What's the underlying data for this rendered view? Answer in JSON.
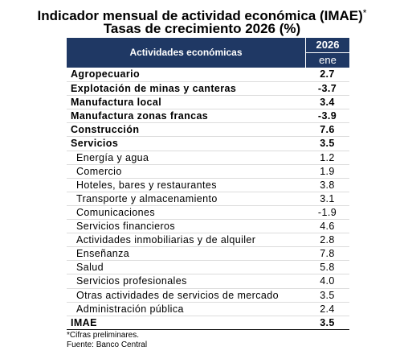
{
  "title": {
    "line1": "Indicador mensual de actividad económica (IMAE)",
    "line1_mark": "*",
    "line2": "Tasas de crecimiento 2026 (%)"
  },
  "table": {
    "header": {
      "label": "Actividades económicas",
      "year": "2026",
      "month": "ene"
    },
    "rows": [
      {
        "label": "Agropecuario",
        "value": "2.7",
        "level": "main"
      },
      {
        "label": "Explotación de minas y canteras",
        "value": "-3.7",
        "level": "main"
      },
      {
        "label": "Manufactura local",
        "value": "3.4",
        "level": "main"
      },
      {
        "label": "Manufactura zonas francas",
        "value": "-3.9",
        "level": "main"
      },
      {
        "label": "Construcción",
        "value": "7.6",
        "level": "main"
      },
      {
        "label": "Servicios",
        "value": "3.5",
        "level": "main"
      },
      {
        "label": "Energía y agua",
        "value": "1.2",
        "level": "sub"
      },
      {
        "label": "Comercio",
        "value": "1.9",
        "level": "sub"
      },
      {
        "label": "Hoteles, bares y restaurantes",
        "value": "3.8",
        "level": "sub"
      },
      {
        "label": "Transporte y almacenamiento",
        "value": "3.1",
        "level": "sub"
      },
      {
        "label": "Comunicaciones",
        "value": "-1.9",
        "level": "sub"
      },
      {
        "label": "Servicios financieros",
        "value": "4.6",
        "level": "sub"
      },
      {
        "label": "Actividades inmobiliarias y de alquiler",
        "value": "2.8",
        "level": "sub"
      },
      {
        "label": "Enseñanza",
        "value": "7.8",
        "level": "sub"
      },
      {
        "label": "Salud",
        "value": "5.8",
        "level": "sub"
      },
      {
        "label": "Servicios profesionales",
        "value": "4.0",
        "level": "sub"
      },
      {
        "label": "Otras actividades de servicios de mercado",
        "value": "3.5",
        "level": "sub"
      },
      {
        "label": "Administración pública",
        "value": "2.4",
        "level": "sub"
      },
      {
        "label": "IMAE",
        "value": "3.5",
        "level": "main"
      }
    ]
  },
  "notes": {
    "line1": "*Cifras preliminares.",
    "line2": "Fuente: Banco Central"
  },
  "colors": {
    "header_bg": "#1f3864",
    "header_text": "#ffffff"
  }
}
